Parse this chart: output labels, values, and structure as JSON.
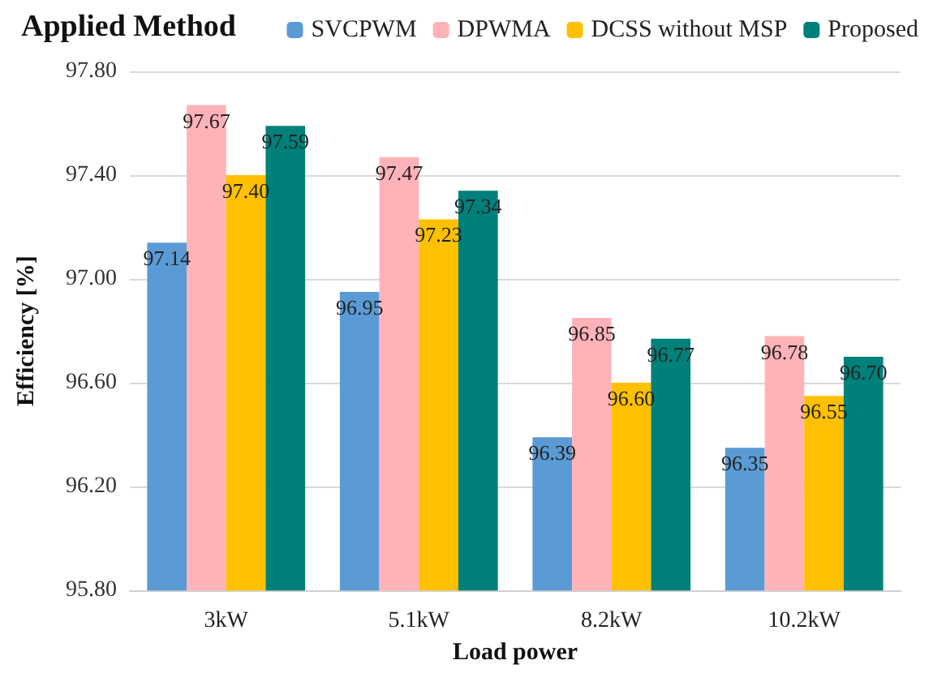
{
  "chart_data": {
    "type": "bar",
    "xlabel": "Load power",
    "ylabel": "Efficiency [%]",
    "legend_title": "Applied Method",
    "legend": "top",
    "grid": "y",
    "categories": [
      "3kW",
      "5.1kW",
      "8.2kW",
      "10.2kW"
    ],
    "ylim": [
      95.8,
      97.8
    ],
    "yticks": [
      {
        "value": 95.8,
        "label": "95.80"
      },
      {
        "value": 96.2,
        "label": "96.20"
      },
      {
        "value": 96.6,
        "label": "96.60"
      },
      {
        "value": 97.0,
        "label": "97.00"
      },
      {
        "value": 97.4,
        "label": "97.40"
      },
      {
        "value": 97.8,
        "label": "97.80"
      }
    ],
    "series": [
      {
        "name": "SVCPWM",
        "color": "#5b9bd5",
        "values": [
          97.14,
          96.95,
          96.39,
          96.35
        ],
        "value_labels": [
          "97.14",
          "96.95",
          "96.39",
          "96.35"
        ]
      },
      {
        "name": "DPWMA",
        "color": "#ffb3b8",
        "values": [
          97.67,
          97.47,
          96.85,
          96.78
        ],
        "value_labels": [
          "97.67",
          "97.47",
          "96.85",
          "96.78"
        ]
      },
      {
        "name": "DCSS without MSP",
        "color": "#ffc000",
        "values": [
          97.4,
          97.23,
          96.6,
          96.55
        ],
        "value_labels": [
          "97.40",
          "97.23",
          "96.60",
          "96.55"
        ]
      },
      {
        "name": "Proposed",
        "color": "#00807a",
        "values": [
          97.59,
          97.34,
          96.77,
          96.7
        ],
        "value_labels": [
          "97.59",
          "97.34",
          "96.77",
          "96.70"
        ]
      }
    ]
  }
}
